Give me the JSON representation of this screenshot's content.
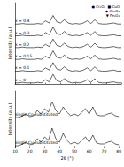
{
  "chart_data": [
    {
      "type": "line",
      "ylabel": "Intensity (a.u.)",
      "tick_labels": false,
      "x": [
        10,
        12.5,
        15,
        17.5,
        20,
        22.5,
        25,
        27.5,
        30,
        32.5,
        35,
        37.5,
        40,
        42.5,
        45,
        47.5,
        50,
        52.5,
        55,
        57.5,
        60,
        62.5,
        65,
        67.5,
        70,
        72.5,
        75,
        77.5,
        80
      ],
      "xlim": [
        10,
        80
      ],
      "xticks": [
        10,
        20,
        30,
        40,
        50,
        60,
        70,
        80
      ],
      "ylim": [
        0,
        76
      ],
      "annotations": [
        "● Cr₂O₃  ■ CuO",
        "◆ Co₃O₄",
        "▼ Fe₂O₃"
      ],
      "series": [
        {
          "name": "x = 0.4",
          "color": "#000000",
          "values": [
            56,
            56,
            56.5,
            56,
            56,
            56,
            56.5,
            56,
            59,
            57,
            64,
            58,
            57,
            60,
            57,
            56,
            56.5,
            56,
            57,
            59,
            56.5,
            60,
            56.5,
            56,
            56,
            56.5,
            57,
            56,
            56
          ]
        },
        {
          "name": "x = 0.3",
          "color": "#000000",
          "values": [
            45,
            45,
            45.5,
            45,
            45,
            45,
            45.5,
            45,
            48,
            46,
            53,
            47,
            46,
            49,
            46,
            45,
            45.5,
            45,
            46,
            48,
            45.5,
            49,
            45.5,
            45,
            45,
            45.5,
            46,
            45,
            45
          ]
        },
        {
          "name": "x = 0.2",
          "color": "#000000",
          "values": [
            34,
            34,
            34.5,
            34,
            34,
            34,
            34.5,
            34,
            37,
            35,
            42,
            36,
            35,
            38,
            35,
            34,
            34.5,
            34,
            35,
            37,
            34.5,
            38,
            34.5,
            34,
            34,
            34.5,
            35,
            34,
            34
          ]
        },
        {
          "name": "x = 0.15",
          "color": "#000000",
          "values": [
            23,
            23,
            23.5,
            23,
            23,
            23,
            23.5,
            23,
            26,
            24,
            31,
            25,
            24,
            27,
            24,
            23,
            23.5,
            23,
            24,
            26,
            23.5,
            27,
            23.5,
            23,
            23,
            23.5,
            24,
            23,
            23
          ]
        },
        {
          "name": "x = 0.1",
          "color": "#000000",
          "values": [
            12,
            12,
            12.5,
            12,
            12,
            12,
            12.5,
            12,
            15,
            13,
            20,
            14,
            13,
            16,
            13,
            12,
            12.5,
            12,
            13,
            15,
            12.5,
            16,
            12.5,
            12,
            12,
            12.5,
            13,
            12,
            12
          ]
        },
        {
          "name": "x = 0",
          "color": "#000000",
          "values": [
            1,
            1,
            1.5,
            1,
            1,
            1,
            1.5,
            1,
            4,
            2,
            9,
            3,
            2,
            5,
            2,
            1,
            1.5,
            1,
            2,
            4,
            1.5,
            5,
            1.5,
            1,
            1,
            1.5,
            2,
            1,
            1
          ]
        }
      ]
    },
    {
      "type": "line",
      "xlabel": "2θ (°)",
      "ylabel": "Intensity (a.u.)",
      "tick_labels": "x",
      "x": [
        10,
        12.5,
        15,
        17.5,
        20,
        22.5,
        25,
        27.5,
        30,
        32.5,
        35,
        37.5,
        40,
        42.5,
        45,
        47.5,
        50,
        52.5,
        55,
        57.5,
        60,
        62.5,
        65,
        67.5,
        70,
        72.5,
        75,
        77.5,
        80
      ],
      "xlim": [
        10,
        80
      ],
      "xticks": [
        10,
        20,
        30,
        40,
        50,
        60,
        70,
        80
      ],
      "ylim": [
        0,
        32
      ],
      "series": [
        {
          "name": "single Co-substituted",
          "color": "#000000",
          "values": [
            17,
            17,
            18,
            19,
            17.5,
            18,
            21,
            19,
            22,
            20,
            26,
            21,
            19,
            23,
            20,
            18,
            19,
            18,
            20,
            22,
            19,
            23,
            18.5,
            18,
            18,
            19,
            19.5,
            18,
            17.5
          ]
        },
        {
          "name": "single Cu-substituted",
          "color": "#000000",
          "values": [
            1,
            1,
            2,
            3,
            1.5,
            2,
            5,
            3,
            6,
            4,
            11,
            5,
            3,
            8,
            4,
            2,
            3,
            2,
            4,
            6,
            3,
            7,
            2.5,
            2,
            2,
            3,
            3.5,
            2,
            1.5
          ]
        }
      ]
    }
  ]
}
